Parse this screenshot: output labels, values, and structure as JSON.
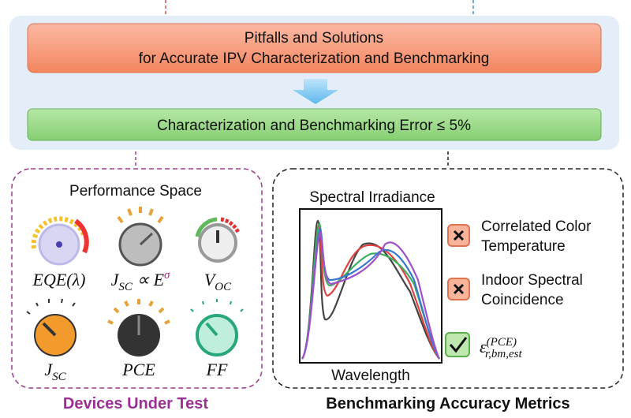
{
  "header": {
    "title_lines": [
      "Pitfalls and Solutions",
      "for Accurate IPV Characterization and Benchmarking"
    ],
    "goal": "Characterization and Benchmarking Error ≤ 5%"
  },
  "devices": {
    "panel_title": "Performance Space",
    "caption": "Devices Under Test",
    "knobs": [
      {
        "label": [
          {
            "text": "EQE(λ)"
          }
        ]
      },
      {
        "label": [
          {
            "text": "J"
          },
          {
            "text": "SC",
            "pos": "sub"
          },
          {
            "text": " ∝ E"
          },
          {
            "text": "σ",
            "pos": "sup"
          }
        ]
      },
      {
        "label": [
          {
            "text": "V"
          },
          {
            "text": "OC",
            "pos": "sub"
          }
        ]
      },
      {
        "label": [
          {
            "text": "J"
          },
          {
            "text": "SC",
            "pos": "sub"
          }
        ]
      },
      {
        "label": [
          {
            "text": "PCE"
          }
        ]
      },
      {
        "label": [
          {
            "text": "FF"
          }
        ]
      }
    ]
  },
  "metrics": {
    "plot_title": "Spectral Irradiance",
    "plot_xlabel": "Wavelength",
    "caption": "Benchmarking Accuracy Metrics",
    "items": [
      {
        "lines": [
          "Correlated Color",
          "Temperature"
        ]
      },
      {
        "lines": [
          "Indoor Spectral",
          "Coincidence"
        ]
      },
      {
        "lines": [
          [
            {
              "text": "ε"
            },
            {
              "text": "(PCE)",
              "pos": "sup"
            },
            {
              "text": "r,bm,est",
              "pos": "sub"
            }
          ]
        ]
      }
    ]
  }
}
